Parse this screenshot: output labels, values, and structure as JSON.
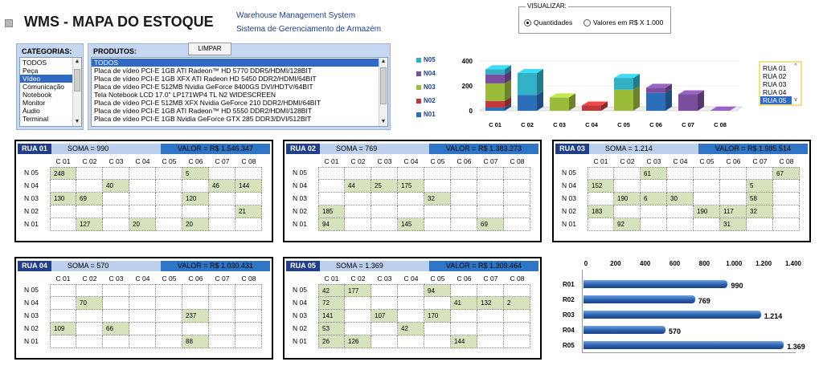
{
  "header": {
    "title": "WMS - MAPA DO ESTOQUE",
    "subtitle_en": "Warehouse Management System",
    "subtitle_pt": "Sistema de Gerenciamento de Armazém"
  },
  "visualizar": {
    "label": "VISUALIZAR:",
    "options": [
      "Quantidades",
      "Valores em R$ X 1.000"
    ],
    "selected": "Quantidades"
  },
  "categorias": {
    "title": "CATEGORIAS:",
    "items": [
      "TODOS",
      "Peça",
      "Vídeo",
      "Comunicação",
      "Notebook",
      "Monitor",
      "Áudio",
      "Terminal"
    ],
    "selected": "Vídeo"
  },
  "produtos": {
    "title": "PRODUTOS:",
    "clear_button": "LIMPAR",
    "items": [
      "TODOS",
      "Placa de vídeo PCI-E 1GB ATI Radeon™ HD 5770 DDR5/HDMI/128BIT",
      "Placa de vídeo PCI-E 1GB XFX ATI Radeon HD 5450 DDR2/HDMI/64BIT",
      "Placa de vídeo PCI-E 512MB Nvidia GeForce 8400GS DVI/HDTV/64BIT",
      "Tela Notebook LCD 17.0\" LP171WP4 TL N2 WIDESCREEN",
      "Placa de vídeo PCI-E 512MB XFX Nvidia GeForce 210 DDR2/HDMI/64BIT",
      "Placa de vídeo PCI-E 1GB ATI Radeon™ HD 5550 DDR2/HDMI/128BIT",
      "Placa de vídeo PCI-E 1GB Nvidia GeForce GTX 285 DDR3/DVI/512BIT"
    ],
    "selected": "TODOS"
  },
  "rua_selector": {
    "items": [
      "RUA 01",
      "RUA 02",
      "RUA 03",
      "RUA 04",
      "RUA 05"
    ],
    "selected": "RUA 05"
  },
  "colors": {
    "N05": "#31b0c6",
    "N04": "#7c4f9e",
    "N03": "#9bbb3b",
    "N02": "#c0393b",
    "N01": "#2c6fb8",
    "header_dark": "#1f3f8a",
    "header_light": "#bcd0ee",
    "header_valor": "#2e75c5",
    "cell_filled": "#d6e3bc"
  },
  "columns": [
    "C 01",
    "C 02",
    "C 03",
    "C 04",
    "C 05",
    "C 06",
    "C 07",
    "C 08"
  ],
  "levels": [
    "N 05",
    "N 04",
    "N 03",
    "N 02",
    "N 01"
  ],
  "ruas": [
    {
      "name": "RUA 01",
      "soma": "SOMA = 990",
      "valor": "VALOR = R$ 1.546.347",
      "grid": [
        [
          "248",
          "",
          "",
          "",
          "",
          "5",
          "",
          ""
        ],
        [
          "",
          "",
          "40",
          "",
          "",
          "",
          "46",
          "144"
        ],
        [
          "130",
          "69",
          "",
          "",
          "",
          "120",
          "",
          ""
        ],
        [
          "",
          "",
          "",
          "",
          "",
          "",
          "",
          "21"
        ],
        [
          "",
          "127",
          "",
          "20",
          "",
          "20",
          "",
          ""
        ]
      ]
    },
    {
      "name": "RUA 02",
      "soma": "SOMA = 769",
      "valor": "VALOR = R$ 1.383.273",
      "grid": [
        [
          "",
          "",
          "",
          "",
          "",
          "",
          "",
          ""
        ],
        [
          "",
          "44",
          "25",
          "175",
          "",
          "",
          "",
          ""
        ],
        [
          "",
          "",
          "",
          "",
          "32",
          "",
          "",
          ""
        ],
        [
          "185",
          "",
          "",
          "",
          "",
          "",
          "",
          ""
        ],
        [
          "94",
          "",
          "",
          "145",
          "",
          "",
          "69",
          ""
        ]
      ]
    },
    {
      "name": "RUA 03",
      "soma": "SOMA = 1.214",
      "valor": "VALOR = R$ 1.985.514",
      "grid": [
        [
          "",
          "",
          "61",
          "",
          "",
          "",
          "",
          "67"
        ],
        [
          "152",
          "",
          "",
          "",
          "",
          "",
          "5",
          ""
        ],
        [
          "",
          "190",
          "6",
          "30",
          "",
          "",
          "58",
          ""
        ],
        [
          "183",
          "",
          "",
          "",
          "190",
          "117",
          "32",
          ""
        ],
        [
          "",
          "92",
          "",
          "",
          "",
          "31",
          "",
          ""
        ]
      ]
    },
    {
      "name": "RUA 04",
      "soma": "SOMA = 570",
      "valor": "VALOR = R$ 1.030.431",
      "grid": [
        [
          "",
          "",
          "",
          "",
          "",
          "",
          "",
          ""
        ],
        [
          "",
          "70",
          "",
          "",
          "",
          "",
          "",
          ""
        ],
        [
          "",
          "",
          "",
          "",
          "",
          "237",
          "",
          ""
        ],
        [
          "109",
          "",
          "66",
          "",
          "",
          "",
          "",
          ""
        ],
        [
          "",
          "",
          "",
          "",
          "",
          "88",
          "",
          ""
        ]
      ]
    },
    {
      "name": "RUA 05",
      "soma": "SOMA = 1.369",
      "valor": "VALOR = R$ 1.309.464",
      "grid": [
        [
          "42",
          "177",
          "",
          "",
          "94",
          "",
          "",
          ""
        ],
        [
          "72",
          "",
          "",
          "",
          "",
          "41",
          "132",
          "2"
        ],
        [
          "141",
          "",
          "107",
          "",
          "170",
          "",
          "",
          ""
        ],
        [
          "53",
          "",
          "",
          "42",
          "",
          "",
          "",
          ""
        ],
        [
          "26",
          "126",
          "",
          "",
          "",
          "144",
          "",
          ""
        ]
      ]
    }
  ],
  "chart_data": [
    {
      "type": "bar",
      "stacked": true,
      "three_d": true,
      "categories": [
        "C 01",
        "C 02",
        "C 03",
        "C 04",
        "C 05",
        "C 06",
        "C 07",
        "C 08"
      ],
      "ylim": [
        0,
        400
      ],
      "yticks": [
        "0",
        "200",
        "400"
      ],
      "series": [
        {
          "name": "N01",
          "values": [
            26,
            126,
            0,
            0,
            0,
            144,
            0,
            0
          ]
        },
        {
          "name": "N02",
          "values": [
            53,
            0,
            0,
            42,
            0,
            0,
            0,
            0
          ]
        },
        {
          "name": "N03",
          "values": [
            141,
            0,
            107,
            0,
            170,
            0,
            0,
            0
          ]
        },
        {
          "name": "N04",
          "values": [
            72,
            0,
            0,
            0,
            0,
            41,
            132,
            2
          ]
        },
        {
          "name": "N05",
          "values": [
            42,
            177,
            0,
            0,
            94,
            0,
            0,
            0
          ]
        }
      ],
      "legend_order": [
        "N05",
        "N04",
        "N03",
        "N02",
        "N01"
      ],
      "legend_position": "left"
    },
    {
      "type": "bar",
      "orientation": "horizontal",
      "categories": [
        "R01",
        "R02",
        "R03",
        "R04",
        "R05"
      ],
      "values": [
        990,
        769,
        1214,
        570,
        1369
      ],
      "value_labels": [
        "990",
        "769",
        "1.214",
        "570",
        "1.369"
      ],
      "xlim": [
        0,
        1400
      ],
      "xticks": [
        "0",
        "200",
        "400",
        "600",
        "800",
        "1.000",
        "1.200",
        "1.400"
      ]
    }
  ]
}
